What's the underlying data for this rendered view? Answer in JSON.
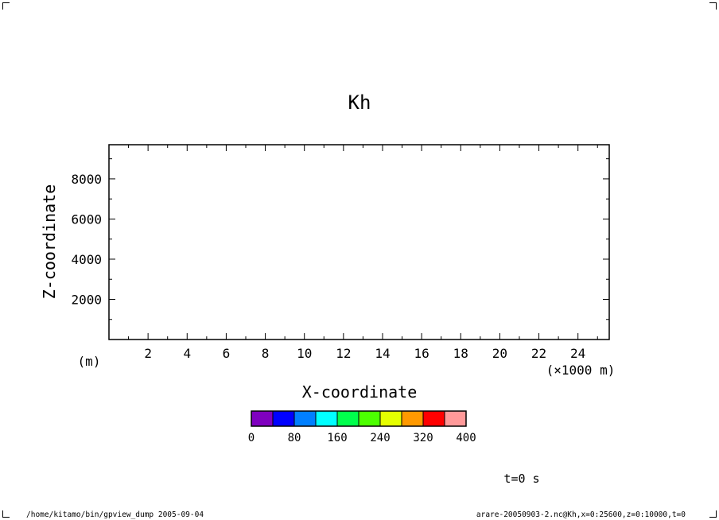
{
  "chart_data": {
    "type": "heatmap",
    "title": "Kh",
    "xlabel": "X-coordinate",
    "ylabel": "Z-coordinate",
    "x_unit_label": "(×1000 m)",
    "y_unit_label": "(m)",
    "xlim": [
      0,
      25.6
    ],
    "ylim": [
      0,
      9700
    ],
    "x_ticks": [
      2,
      4,
      6,
      8,
      10,
      12,
      14,
      16,
      18,
      20,
      22,
      24
    ],
    "y_ticks": [
      2000,
      4000,
      6000,
      8000
    ],
    "x_minor_step": 1,
    "y_minor_step": 1000,
    "grid": false,
    "values": [],
    "colorbar": {
      "colors": [
        "#7f00bf",
        "#0000ff",
        "#007fff",
        "#00ffff",
        "#00ff4c",
        "#4cff00",
        "#e5ff00",
        "#ff9900",
        "#ff0000",
        "#ff9999"
      ],
      "boundaries": [
        0,
        40,
        80,
        120,
        160,
        200,
        240,
        280,
        320,
        360,
        400
      ],
      "tick_values": [
        0,
        80,
        160,
        240,
        320,
        400
      ]
    }
  },
  "annotations": {
    "time": "t=0 s",
    "footer_left": "/home/kitamo/bin/gpview_dump  2005-09-04",
    "footer_right": "arare-20050903-2.nc@Kh,x=0:25600,z=0:10000,t=0"
  }
}
